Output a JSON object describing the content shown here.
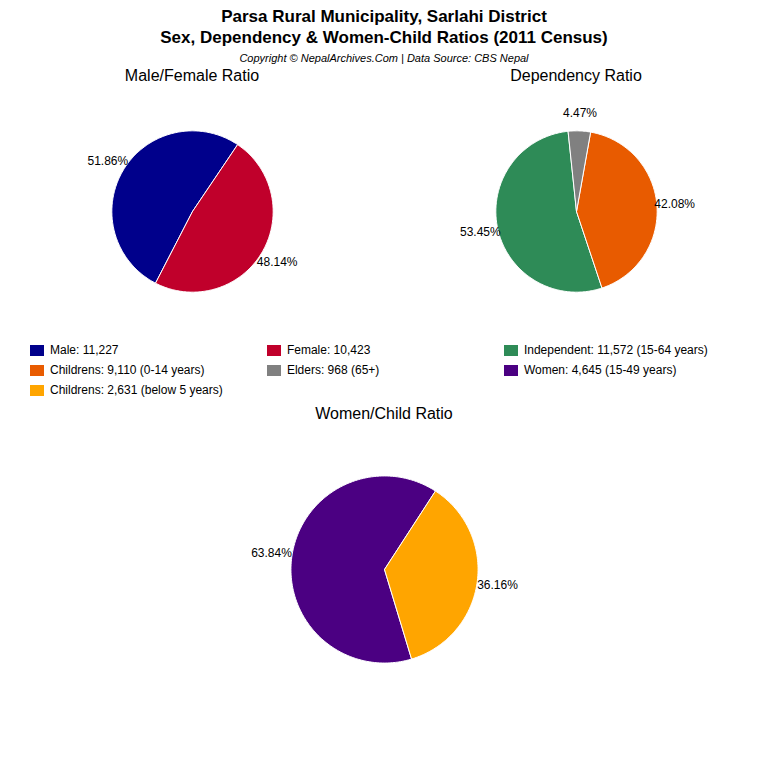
{
  "title": "Parsa Rural Municipality, Sarlahi District",
  "subtitle": "Sex, Dependency & Women-Child Ratios (2011 Census)",
  "caption": "Copyright © NepalArchives.Com | Data Source: CBS Nepal",
  "chart_data": [
    {
      "type": "pie",
      "title": "Male/Female Ratio",
      "categories": [
        "Male: 11,227",
        "Female: 10,423"
      ],
      "values": [
        51.86,
        48.14
      ],
      "value_labels": [
        "51.86%",
        "48.14%"
      ],
      "colors": [
        "#00008B",
        "#C0002B"
      ],
      "data_labels": true,
      "legend": "center"
    },
    {
      "type": "pie",
      "title": "Dependency Ratio",
      "categories": [
        "Independent: 11,572 (15-64 years)",
        "Childrens: 9,110 (0-14 years)",
        "Elders: 968 (65+)"
      ],
      "values": [
        53.45,
        42.08,
        4.47
      ],
      "value_labels": [
        "53.45%",
        "42.08%",
        "4.47%"
      ],
      "colors": [
        "#2E8B57",
        "#E85B00",
        "#808080"
      ],
      "data_labels": true,
      "legend": "center"
    },
    {
      "type": "pie",
      "title": "Women/Child Ratio",
      "categories": [
        "Women: 4,645 (15-49 years)",
        "Childrens: 2,631 (below 5 years)"
      ],
      "values": [
        63.84,
        36.16
      ],
      "value_labels": [
        "63.84%",
        "36.16%"
      ],
      "colors": [
        "#4B0082",
        "#FFA500"
      ],
      "data_labels": true,
      "legend": "center"
    }
  ]
}
